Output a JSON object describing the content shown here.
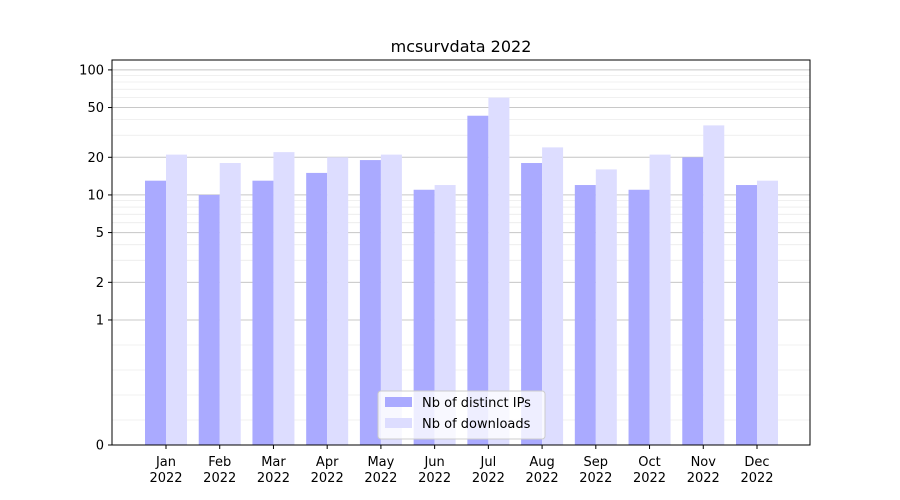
{
  "chart_data": {
    "type": "bar",
    "title": "mcsurvdata 2022",
    "xlabel": "",
    "ylabel": "",
    "y_scale": "symlog",
    "ylim": [
      0,
      120
    ],
    "yticks": [
      0,
      1,
      2,
      5,
      10,
      20,
      50,
      100
    ],
    "grid": true,
    "legend_placement": "bottom-center",
    "categories": [
      [
        "Jan",
        "2022"
      ],
      [
        "Feb",
        "2022"
      ],
      [
        "Mar",
        "2022"
      ],
      [
        "Apr",
        "2022"
      ],
      [
        "May",
        "2022"
      ],
      [
        "Jun",
        "2022"
      ],
      [
        "Jul",
        "2022"
      ],
      [
        "Aug",
        "2022"
      ],
      [
        "Sep",
        "2022"
      ],
      [
        "Oct",
        "2022"
      ],
      [
        "Nov",
        "2022"
      ],
      [
        "Dec",
        "2022"
      ]
    ],
    "series": [
      {
        "name": "Nb of distinct IPs",
        "color": "#aaaaff",
        "values": [
          13,
          10,
          13,
          15,
          19,
          11,
          43,
          18,
          12,
          11,
          20,
          12
        ]
      },
      {
        "name": "Nb of downloads",
        "color": "#ddddff",
        "values": [
          21,
          18,
          22,
          20,
          21,
          12,
          60,
          24,
          16,
          21,
          36,
          13
        ]
      }
    ]
  }
}
